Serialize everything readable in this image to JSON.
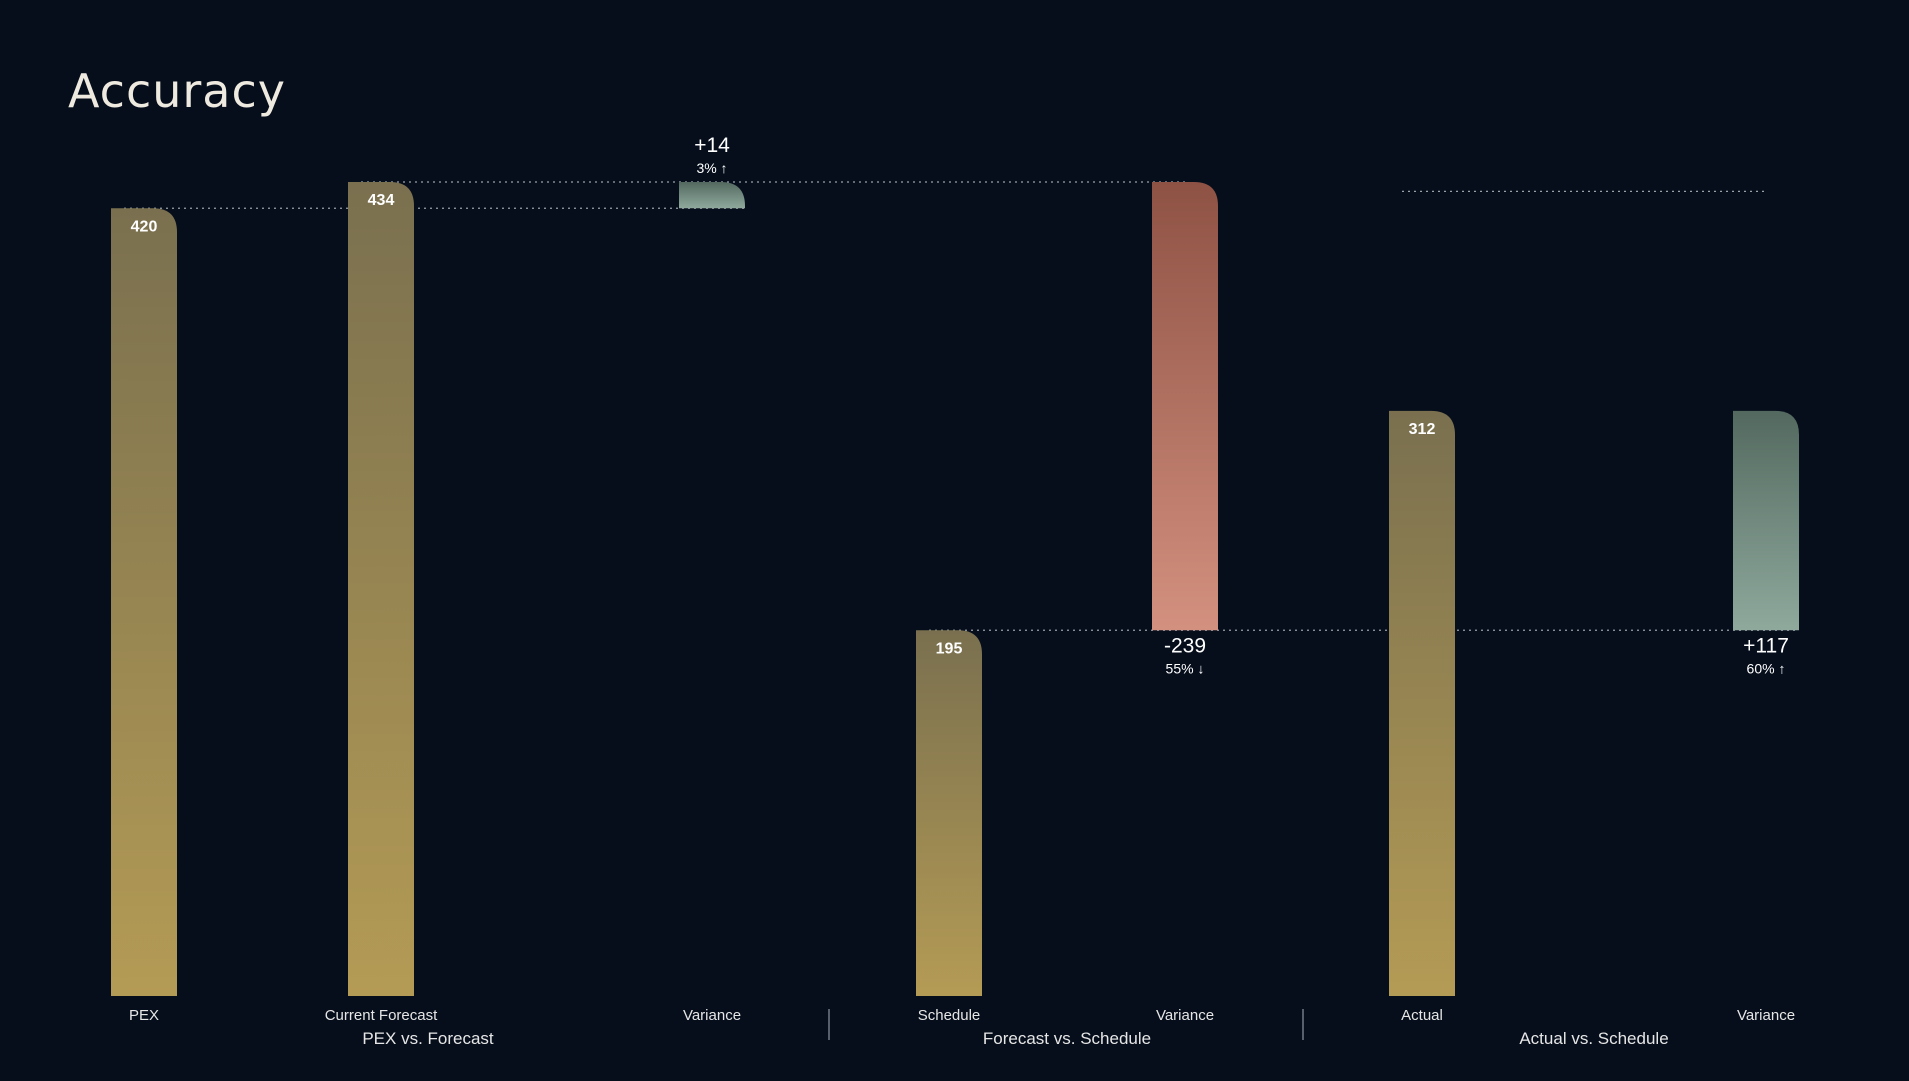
{
  "page": {
    "title": "Accuracy"
  },
  "colors": {
    "background": "#060e1c",
    "bar_top": "#7a704f",
    "bar_bottom": "#b49b55",
    "increase_top": "#53695f",
    "increase_bottom": "#8fa99d",
    "decrease_top": "#8e5244",
    "decrease_bottom": "#d3907f",
    "connector": "#9aa1a8",
    "separator": "#55606c"
  },
  "chart_data": {
    "type": "bar",
    "variant": "waterfall-comparison",
    "ylim": [
      0,
      434
    ],
    "grid": false,
    "legend": "none",
    "groups": [
      {
        "label": "PEX vs. Forecast",
        "base": {
          "category": "PEX",
          "value": 420,
          "value_label": "420"
        },
        "compare": {
          "category": "Current Forecast",
          "value": 434,
          "value_label": "434"
        },
        "variance": {
          "category": "Variance",
          "value": 14,
          "value_label": "+14",
          "pct_label": "3% ↑",
          "direction": "up"
        }
      },
      {
        "label": "Forecast vs. Schedule",
        "base": {
          "category": "Schedule",
          "value": 195,
          "value_label": "195"
        },
        "variance": {
          "category": "Variance",
          "value": -239,
          "value_label": "-239",
          "pct_label": "55% ↓",
          "direction": "down"
        }
      },
      {
        "label": "Actual vs. Schedule",
        "base": {
          "category": "Actual",
          "value": 312,
          "value_label": "312"
        },
        "variance": {
          "category": "Variance",
          "value": 117,
          "value_label": "+117",
          "pct_label": "60% ↑",
          "direction": "up"
        }
      }
    ]
  }
}
